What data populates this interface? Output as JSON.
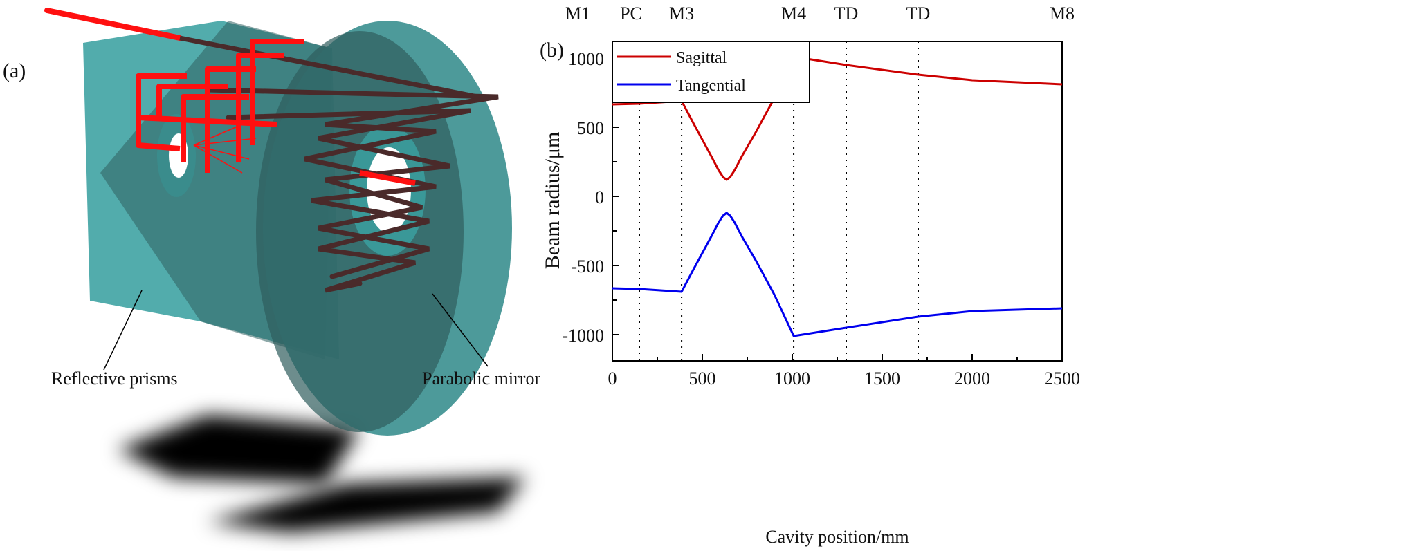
{
  "panel_a": {
    "label": "(a)",
    "callouts": [
      "Reflective prisms",
      "Parabolic mirror"
    ],
    "colors": {
      "glass": "#3fa3a3",
      "beam_front": "#ff1010",
      "beam_back": "#4a2a2a"
    }
  },
  "chart_data": {
    "type": "line",
    "panel_label": "(b)",
    "xlabel": "Cavity position/mm",
    "ylabel": "Beam radius/μm",
    "xlim": [
      0,
      2500
    ],
    "ylim": [
      -1190,
      1120
    ],
    "xticks": [
      0,
      500,
      1000,
      1500,
      2000,
      2500
    ],
    "yticks": [
      -1000,
      -500,
      0,
      500,
      1000
    ],
    "grid": false,
    "legend": "top-left",
    "components": [
      {
        "label": "M1",
        "x": 0
      },
      {
        "label": "PC",
        "x": 150
      },
      {
        "label": "M3",
        "x": 385
      },
      {
        "label": "M4",
        "x": 1008
      },
      {
        "label": "TD",
        "x": 1300
      },
      {
        "label": "TD",
        "x": 1700
      },
      {
        "label": "M8",
        "x": 2500
      }
    ],
    "series": [
      {
        "name": "Sagittal",
        "color": "#cc0000",
        "x": [
          0,
          150,
          385,
          450,
          500,
          550,
          590,
          615,
          635,
          655,
          680,
          720,
          800,
          900,
          1008,
          1300,
          1700,
          2000,
          2500
        ],
        "y": [
          665,
          670,
          690,
          530,
          410,
          290,
          190,
          140,
          120,
          140,
          190,
          290,
          470,
          710,
          1010,
          950,
          880,
          840,
          810
        ]
      },
      {
        "name": "Tangential",
        "color": "#0000ee",
        "x": [
          0,
          150,
          385,
          450,
          500,
          550,
          590,
          615,
          635,
          655,
          680,
          720,
          800,
          900,
          1008,
          1300,
          1700,
          2000,
          2500
        ],
        "y": [
          -665,
          -670,
          -690,
          -530,
          -410,
          -290,
          -190,
          -140,
          -120,
          -140,
          -190,
          -290,
          -470,
          -710,
          -1010,
          -950,
          -870,
          -830,
          -810
        ]
      }
    ]
  }
}
